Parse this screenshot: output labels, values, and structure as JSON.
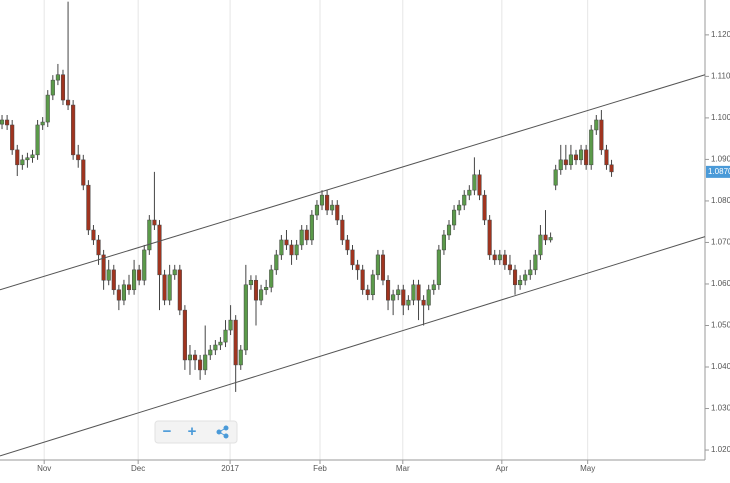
{
  "chart_data": {
    "type": "candlestick",
    "up_color": "#5b9a4a",
    "down_color": "#a0341f",
    "line_color": "#444444",
    "ylim": [
      1.0176,
      1.1284
    ],
    "xlim": [
      -0.4,
      138.4
    ],
    "yticks": [
      {
        "value": 1.02,
        "label": "1.0200"
      },
      {
        "value": 1.03,
        "label": "1.0300"
      },
      {
        "value": 1.04,
        "label": "1.0400"
      },
      {
        "value": 1.05,
        "label": "1.0500"
      },
      {
        "value": 1.06,
        "label": "1.0600"
      },
      {
        "value": 1.07,
        "label": "1.0700"
      },
      {
        "value": 1.08,
        "label": "1.0800"
      },
      {
        "value": 1.09,
        "label": "1.0900"
      },
      {
        "value": 1.1,
        "label": "1.1000"
      },
      {
        "value": 1.11,
        "label": "1.1100"
      },
      {
        "value": 1.12,
        "label": "1.1200"
      }
    ],
    "xticks": [
      {
        "value": 8.3,
        "label": "Nov"
      },
      {
        "value": 26.8,
        "label": "Dec"
      },
      {
        "value": 44.9,
        "label": "2017"
      },
      {
        "value": 62.6,
        "label": "Feb"
      },
      {
        "value": 78.9,
        "label": "Mar"
      },
      {
        "value": 98.4,
        "label": "Apr"
      },
      {
        "value": 115.3,
        "label": "May"
      }
    ],
    "grid": true,
    "last_price": {
      "value": 1.087,
      "label": "1.0870"
    },
    "trendlines": [
      {
        "x": [
          -0.4,
          138.4
        ],
        "y": [
          1.0586,
          1.1104
        ]
      },
      {
        "x": [
          -0.4,
          138.4
        ],
        "y": [
          1.0186,
          1.0714
        ]
      }
    ],
    "candles": [
      [
        1.0985,
        1.1007,
        1.0973,
        1.0995
      ],
      [
        1.0995,
        1.1007,
        1.0971,
        1.0983
      ],
      [
        1.0983,
        1.0995,
        1.0911,
        1.0923
      ],
      [
        1.0923,
        1.0935,
        1.086,
        1.0887
      ],
      [
        1.0887,
        1.0911,
        1.0875,
        1.0899
      ],
      [
        1.0899,
        1.0916,
        1.088,
        1.0904
      ],
      [
        1.0904,
        1.0923,
        1.0892,
        1.0911
      ],
      [
        1.0911,
        1.0995,
        1.0899,
        1.0983
      ],
      [
        1.0983,
        1.1002,
        1.0971,
        1.099
      ],
      [
        1.099,
        1.1067,
        1.0978,
        1.1055
      ],
      [
        1.1055,
        1.1103,
        1.1043,
        1.1091
      ],
      [
        1.1091,
        1.113,
        1.1079,
        1.1104
      ],
      [
        1.1104,
        1.1116,
        1.1031,
        1.1043
      ],
      [
        1.1043,
        1.128,
        1.1019,
        1.1031
      ],
      [
        1.1031,
        1.1043,
        1.0899,
        1.0911
      ],
      [
        1.0911,
        1.0935,
        1.088,
        1.0899
      ],
      [
        1.0899,
        1.0911,
        1.0826,
        1.0838
      ],
      [
        1.0838,
        1.085,
        1.0718,
        1.073
      ],
      [
        1.073,
        1.0742,
        1.0694,
        1.0706
      ],
      [
        1.0706,
        1.0718,
        1.0646,
        1.067
      ],
      [
        1.067,
        1.0682,
        1.0586,
        1.0609
      ],
      [
        1.0609,
        1.0658,
        1.0597,
        1.0634
      ],
      [
        1.0634,
        1.0646,
        1.0574,
        1.0586
      ],
      [
        1.0586,
        1.0598,
        1.0537,
        1.0561
      ],
      [
        1.0561,
        1.061,
        1.0549,
        1.0598
      ],
      [
        1.0598,
        1.0622,
        1.0574,
        1.0586
      ],
      [
        1.0586,
        1.0658,
        1.0574,
        1.0634
      ],
      [
        1.0634,
        1.0646,
        1.0597,
        1.0609
      ],
      [
        1.0609,
        1.0694,
        1.0597,
        1.0682
      ],
      [
        1.0682,
        1.0766,
        1.067,
        1.0754
      ],
      [
        1.0754,
        1.087,
        1.073,
        1.0742
      ],
      [
        1.0742,
        1.0754,
        1.0537,
        1.0622
      ],
      [
        1.0622,
        1.0634,
        1.0549,
        1.0561
      ],
      [
        1.0561,
        1.0646,
        1.0549,
        1.0622
      ],
      [
        1.0622,
        1.0646,
        1.061,
        1.0634
      ],
      [
        1.0634,
        1.0646,
        1.0525,
        1.0537
      ],
      [
        1.0537,
        1.0549,
        1.0393,
        1.0417
      ],
      [
        1.0417,
        1.0453,
        1.0381,
        1.0429
      ],
      [
        1.0429,
        1.0441,
        1.0393,
        1.0417
      ],
      [
        1.0417,
        1.0429,
        1.0369,
        1.0393
      ],
      [
        1.0393,
        1.05,
        1.0381,
        1.0429
      ],
      [
        1.0429,
        1.0453,
        1.0417,
        1.0441
      ],
      [
        1.0441,
        1.0465,
        1.0429,
        1.0453
      ],
      [
        1.0453,
        1.0472,
        1.0441,
        1.046
      ],
      [
        1.046,
        1.0513,
        1.0448,
        1.0489
      ],
      [
        1.0489,
        1.0549,
        1.0477,
        1.0513
      ],
      [
        1.0513,
        1.0525,
        1.034,
        1.0405
      ],
      [
        1.0405,
        1.0453,
        1.0393,
        1.0441
      ],
      [
        1.0441,
        1.0646,
        1.0429,
        1.0598
      ],
      [
        1.0598,
        1.0621,
        1.0586,
        1.0609
      ],
      [
        1.0609,
        1.0621,
        1.05,
        1.0561
      ],
      [
        1.0561,
        1.0598,
        1.0549,
        1.0586
      ],
      [
        1.0586,
        1.061,
        1.0574,
        1.0592
      ],
      [
        1.0592,
        1.0646,
        1.058,
        1.0634
      ],
      [
        1.0634,
        1.0682,
        1.0622,
        1.067
      ],
      [
        1.067,
        1.0718,
        1.0658,
        1.0706
      ],
      [
        1.0706,
        1.073,
        1.0682,
        1.0694
      ],
      [
        1.0694,
        1.0706,
        1.0646,
        1.067
      ],
      [
        1.067,
        1.0706,
        1.0658,
        1.0694
      ],
      [
        1.0694,
        1.0742,
        1.0682,
        1.073
      ],
      [
        1.073,
        1.0742,
        1.0694,
        1.0706
      ],
      [
        1.0706,
        1.0778,
        1.0694,
        1.0766
      ],
      [
        1.0766,
        1.0802,
        1.0754,
        1.079
      ],
      [
        1.079,
        1.0826,
        1.0778,
        1.0814
      ],
      [
        1.0814,
        1.0826,
        1.0766,
        1.0778
      ],
      [
        1.0778,
        1.0802,
        1.0766,
        1.079
      ],
      [
        1.079,
        1.0802,
        1.0742,
        1.0754
      ],
      [
        1.0754,
        1.0766,
        1.0694,
        1.0706
      ],
      [
        1.0706,
        1.0718,
        1.067,
        1.0682
      ],
      [
        1.0682,
        1.0694,
        1.0634,
        1.0646
      ],
      [
        1.0646,
        1.0658,
        1.061,
        1.0634
      ],
      [
        1.0634,
        1.0646,
        1.0574,
        1.0586
      ],
      [
        1.0586,
        1.0598,
        1.0561,
        1.0574
      ],
      [
        1.0574,
        1.0634,
        1.0561,
        1.0622
      ],
      [
        1.0622,
        1.0682,
        1.061,
        1.067
      ],
      [
        1.067,
        1.0682,
        1.0597,
        1.0609
      ],
      [
        1.0609,
        1.0621,
        1.0537,
        1.0561
      ],
      [
        1.0561,
        1.0586,
        1.0525,
        1.0574
      ],
      [
        1.0574,
        1.0598,
        1.0561,
        1.0586
      ],
      [
        1.0586,
        1.0598,
        1.0525,
        1.0549
      ],
      [
        1.0549,
        1.0573,
        1.0537,
        1.0561
      ],
      [
        1.0561,
        1.061,
        1.0549,
        1.0598
      ],
      [
        1.0598,
        1.061,
        1.0513,
        1.0561
      ],
      [
        1.0561,
        1.0573,
        1.05,
        1.0549
      ],
      [
        1.0549,
        1.0598,
        1.0537,
        1.0586
      ],
      [
        1.0586,
        1.061,
        1.0574,
        1.0598
      ],
      [
        1.0598,
        1.0694,
        1.0586,
        1.0682
      ],
      [
        1.0682,
        1.073,
        1.067,
        1.0718
      ],
      [
        1.0718,
        1.0754,
        1.0706,
        1.0742
      ],
      [
        1.0742,
        1.079,
        1.073,
        1.0778
      ],
      [
        1.0778,
        1.0802,
        1.0766,
        1.079
      ],
      [
        1.079,
        1.0826,
        1.0778,
        1.0814
      ],
      [
        1.0814,
        1.0838,
        1.0802,
        1.0826
      ],
      [
        1.0826,
        1.0905,
        1.0814,
        1.0863
      ],
      [
        1.0863,
        1.0875,
        1.0802,
        1.0814
      ],
      [
        1.0814,
        1.0826,
        1.0742,
        1.0754
      ],
      [
        1.0754,
        1.0766,
        1.0658,
        1.067
      ],
      [
        1.067,
        1.0682,
        1.0646,
        1.0658
      ],
      [
        1.0658,
        1.0682,
        1.0646,
        1.067
      ],
      [
        1.067,
        1.0682,
        1.0634,
        1.0646
      ],
      [
        1.0646,
        1.067,
        1.0622,
        1.0634
      ],
      [
        1.0634,
        1.0646,
        1.0574,
        1.0598
      ],
      [
        1.0598,
        1.0621,
        1.0586,
        1.0609
      ],
      [
        1.0609,
        1.0634,
        1.0597,
        1.0622
      ],
      [
        1.0622,
        1.0658,
        1.061,
        1.0634
      ],
      [
        1.0634,
        1.0682,
        1.0622,
        1.067
      ],
      [
        1.067,
        1.0742,
        1.0658,
        1.0718
      ],
      [
        1.0718,
        1.0778,
        1.0694,
        1.0706
      ],
      [
        1.0706,
        1.0724,
        1.07,
        1.0712
      ],
      [
        1.0838,
        1.0887,
        1.0826,
        1.0875
      ],
      [
        1.0875,
        1.0935,
        1.0863,
        1.0899
      ],
      [
        1.0899,
        1.0935,
        1.0875,
        1.0887
      ],
      [
        1.0887,
        1.0935,
        1.0875,
        1.0911
      ],
      [
        1.0911,
        1.0923,
        1.0887,
        1.0899
      ],
      [
        1.0899,
        1.0935,
        1.0887,
        1.0923
      ],
      [
        1.0923,
        1.0935,
        1.0875,
        1.0887
      ],
      [
        1.0887,
        1.0983,
        1.0875,
        1.0971
      ],
      [
        1.0971,
        1.1007,
        1.0959,
        1.0995
      ],
      [
        1.0995,
        1.1019,
        1.0911,
        1.0923
      ],
      [
        1.0923,
        1.0935,
        1.0875,
        1.0887
      ],
      [
        1.0887,
        1.0899,
        1.0858,
        1.087
      ]
    ]
  },
  "controls": {
    "zoom_out": "−",
    "zoom_in": "+"
  }
}
